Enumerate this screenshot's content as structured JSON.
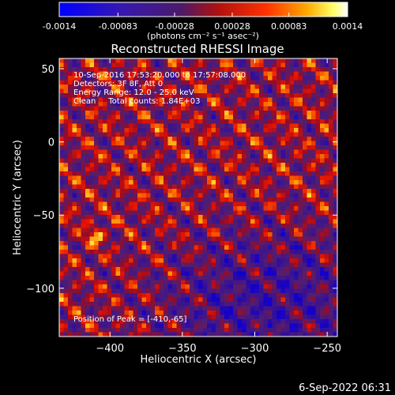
{
  "window": {
    "footer_timestamp": "6-Sep-2022 06:31"
  },
  "colorbar": {
    "tick_labels": [
      "-0.0014",
      "-0.00083",
      "-0.00028",
      "0.00028",
      "0.00083",
      "0.0014"
    ],
    "tick_values": [
      -0.0014,
      -0.00083,
      -0.00028,
      0.00028,
      0.00083,
      0.0014
    ],
    "range": [
      -0.0014,
      0.0014
    ],
    "unit_label": "(photons cm⁻² s⁻¹ asec⁻²)",
    "colors": [
      "#0000ff",
      "#3a1a7a",
      "#5a2a8a",
      "#ff0000",
      "#ff9900",
      "#ffffff"
    ]
  },
  "chart_data": {
    "type": "heatmap",
    "title": "Reconstructed RHESSI Image",
    "xlabel": "Heliocentric X (arcsec)",
    "ylabel": "Heliocentric Y (arcsec)",
    "xlim": [
      -435,
      -243
    ],
    "ylim": [
      -133,
      57
    ],
    "x_ticks": [
      -400,
      -350,
      -300,
      -250
    ],
    "x_tick_labels": [
      "−400",
      "−350",
      "−300",
      "−250"
    ],
    "y_ticks": [
      50,
      0,
      -50,
      -100
    ],
    "y_tick_labels": [
      "50",
      "0",
      "−50",
      "−100"
    ],
    "annotations": [
      "10-Sep-2016 17:53:20.000 to 17:57:08.000",
      "Detectors: 3F 8F, Att 0",
      "Energy Range: 12.0 - 25.0 keV",
      "Clean     Total counts: 1.84E+03"
    ],
    "peak_label": "Position of Peak = [-410,-65]",
    "peak": [
      -410,
      -65
    ],
    "grid": false
  }
}
